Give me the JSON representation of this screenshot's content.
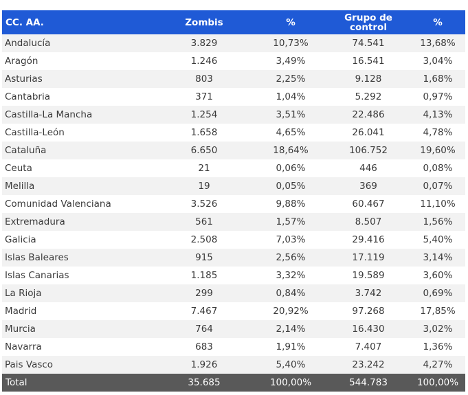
{
  "header": {
    "region": "CC. AA.",
    "zombis": "Zombis",
    "pct1": "%",
    "control": "Grupo de control",
    "pct2": "%"
  },
  "rows": [
    {
      "region": "Andalucía",
      "zombis": "3.829",
      "pct1": "10,73%",
      "control": "74.541",
      "pct2": "13,68%"
    },
    {
      "region": "Aragón",
      "zombis": "1.246",
      "pct1": "3,49%",
      "control": "16.541",
      "pct2": "3,04%"
    },
    {
      "region": "Asturias",
      "zombis": "803",
      "pct1": "2,25%",
      "control": "9.128",
      "pct2": "1,68%"
    },
    {
      "region": "Cantabria",
      "zombis": "371",
      "pct1": "1,04%",
      "control": "5.292",
      "pct2": "0,97%"
    },
    {
      "region": "Castilla-La Mancha",
      "zombis": "1.254",
      "pct1": "3,51%",
      "control": "22.486",
      "pct2": "4,13%"
    },
    {
      "region": "Castilla-León",
      "zombis": "1.658",
      "pct1": "4,65%",
      "control": "26.041",
      "pct2": "4,78%"
    },
    {
      "region": "Cataluña",
      "zombis": "6.650",
      "pct1": "18,64%",
      "control": "106.752",
      "pct2": "19,60%"
    },
    {
      "region": "Ceuta",
      "zombis": "21",
      "pct1": "0,06%",
      "control": "446",
      "pct2": "0,08%"
    },
    {
      "region": "Melilla",
      "zombis": "19",
      "pct1": "0,05%",
      "control": "369",
      "pct2": "0,07%"
    },
    {
      "region": "Comunidad Valenciana",
      "zombis": "3.526",
      "pct1": "9,88%",
      "control": "60.467",
      "pct2": "11,10%"
    },
    {
      "region": "Extremadura",
      "zombis": "561",
      "pct1": "1,57%",
      "control": "8.507",
      "pct2": "1,56%"
    },
    {
      "region": "Galicia",
      "zombis": "2.508",
      "pct1": "7,03%",
      "control": "29.416",
      "pct2": "5,40%"
    },
    {
      "region": "Islas Baleares",
      "zombis": "915",
      "pct1": "2,56%",
      "control": "17.119",
      "pct2": "3,14%"
    },
    {
      "region": "Islas Canarias",
      "zombis": "1.185",
      "pct1": "3,32%",
      "control": "19.589",
      "pct2": "3,60%"
    },
    {
      "region": "La Rioja",
      "zombis": "299",
      "pct1": "0,84%",
      "control": "3.742",
      "pct2": "0,69%"
    },
    {
      "region": "Madrid",
      "zombis": "7.467",
      "pct1": "20,92%",
      "control": "97.268",
      "pct2": "17,85%"
    },
    {
      "region": "Murcia",
      "zombis": "764",
      "pct1": "2,14%",
      "control": "16.430",
      "pct2": "3,02%"
    },
    {
      "region": "Navarra",
      "zombis": "683",
      "pct1": "1,91%",
      "control": "7.407",
      "pct2": "1,36%"
    },
    {
      "region": "Pais Vasco",
      "zombis": "1.926",
      "pct1": "5,40%",
      "control": "23.242",
      "pct2": "4,27%"
    }
  ],
  "total": {
    "region": "Total",
    "zombis": "35.685",
    "pct1": "100,00%",
    "control": "544.783",
    "pct2": "100,00%"
  }
}
